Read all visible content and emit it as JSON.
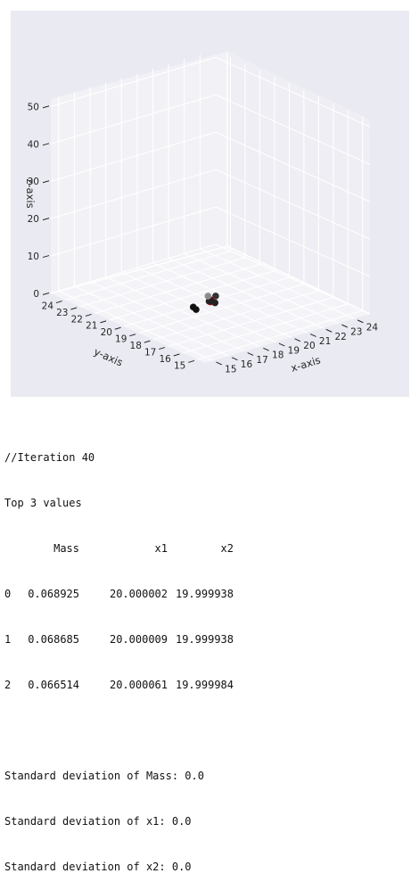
{
  "chart_data": {
    "type": "scatter",
    "projection": "3d",
    "xlabel": "x-axis",
    "ylabel": "y-axis",
    "zlabel": "z-axis",
    "x_ticks": [
      "15",
      "16",
      "17",
      "18",
      "19",
      "20",
      "21",
      "22",
      "23",
      "24"
    ],
    "y_ticks": [
      "15",
      "16",
      "17",
      "18",
      "19",
      "20",
      "21",
      "22",
      "23",
      "24"
    ],
    "z_ticks": [
      "0",
      "10",
      "20",
      "30",
      "40",
      "50"
    ],
    "xlim": [
      14.5,
      25
    ],
    "ylim": [
      14.5,
      25
    ],
    "zlim": [
      0,
      52
    ],
    "grid": true,
    "background_color": "#eaeaf2",
    "points": [
      {
        "x": 20.0,
        "y": 20.0,
        "z": 0,
        "color": "#cc0000"
      },
      {
        "x": 20.0,
        "y": 19.7,
        "z": 0,
        "color": "#222222"
      },
      {
        "x": 19.9,
        "y": 20.0,
        "z": 0,
        "color": "#222222"
      },
      {
        "x": 20.3,
        "y": 20.5,
        "z": 0,
        "color": "#8c8c8c"
      },
      {
        "x": 20.6,
        "y": 20.3,
        "z": 0,
        "color": "#333333"
      },
      {
        "x": 18.8,
        "y": 19.9,
        "z": 0,
        "color": "#111111"
      },
      {
        "x": 18.7,
        "y": 19.6,
        "z": 0,
        "color": "#111111"
      }
    ]
  },
  "console": {
    "iteration_line": "//Iteration 40",
    "top_title": "Top 3 values",
    "columns": [
      "Mass",
      "x1",
      "x2"
    ],
    "rows": [
      {
        "index": "0",
        "mass": "0.068925",
        "x1": "20.000002",
        "x2": "19.999938"
      },
      {
        "index": "1",
        "mass": "0.068685",
        "x1": "20.000009",
        "x2": "19.999938"
      },
      {
        "index": "2",
        "mass": "0.066514",
        "x1": "20.000061",
        "x2": "19.999984"
      }
    ],
    "std_lines": [
      "Standard deviation of Mass: 0.0",
      "Standard deviation of x1: 0.0",
      "Standard deviation of x2: 0.0"
    ]
  }
}
